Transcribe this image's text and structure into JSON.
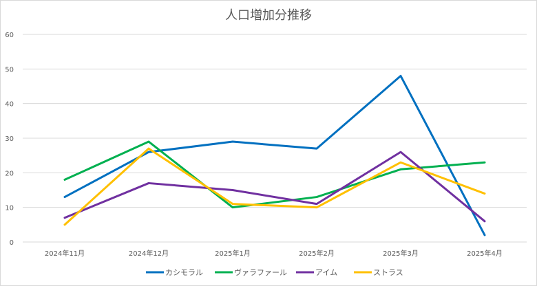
{
  "chart_data": {
    "type": "line",
    "title": "人口増加分推移",
    "xlabel": "",
    "ylabel": "",
    "categories": [
      "2024年11月",
      "2024年12月",
      "2025年1月",
      "2025年2月",
      "2025年3月",
      "2025年4月"
    ],
    "ylim": [
      0,
      60
    ],
    "yticks": [
      "0",
      "10",
      "20",
      "30",
      "40",
      "50",
      "60"
    ],
    "grid": true,
    "legend_position": "bottom",
    "series": [
      {
        "name": "カシモラル",
        "color": "#0070c0",
        "values": [
          13,
          26,
          29,
          27,
          48,
          2
        ]
      },
      {
        "name": "ヴァラファール",
        "color": "#00b050",
        "values": [
          18,
          29,
          10,
          13,
          21,
          23
        ]
      },
      {
        "name": "アイム",
        "color": "#7030a0",
        "values": [
          7,
          17,
          15,
          11,
          26,
          6
        ]
      },
      {
        "name": "ストラス",
        "color": "#ffc000",
        "values": [
          5,
          27,
          11,
          10,
          23,
          14
        ]
      }
    ]
  }
}
